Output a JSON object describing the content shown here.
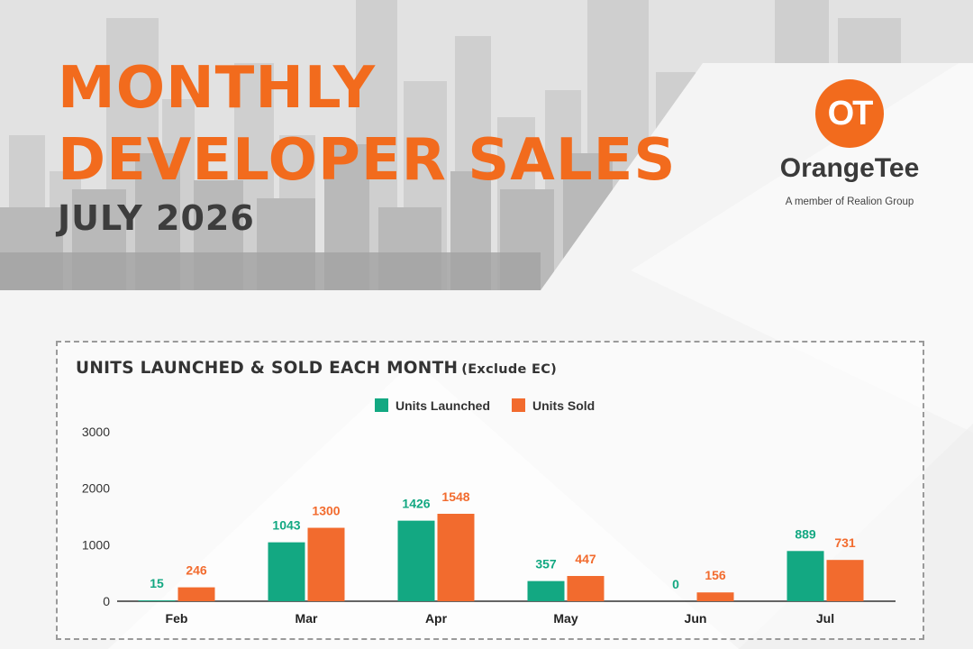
{
  "header": {
    "title_line1": "MONTHLY",
    "title_line2": "DEVELOPER SALES",
    "subtitle": "JULY 2026"
  },
  "logo": {
    "mark": "OT",
    "name": "OrangeTee",
    "tagline": "A member of Realion Group"
  },
  "colors": {
    "accent": "#f26b1d",
    "launched": "#13a882",
    "sold": "#f26b2e",
    "title_dark": "#3d3d3d"
  },
  "chart_data": {
    "type": "bar",
    "title": "UNITS LAUNCHED & SOLD EACH MONTH",
    "title_note": "(Exclude EC)",
    "categories": [
      "Feb",
      "Mar",
      "Apr",
      "May",
      "Jun",
      "Jul"
    ],
    "series": [
      {
        "name": "Units Launched",
        "values": [
          15,
          1043,
          1426,
          357,
          0,
          889
        ]
      },
      {
        "name": "Units Sold",
        "values": [
          246,
          1300,
          1548,
          447,
          156,
          731
        ]
      }
    ],
    "yticks": [
      0,
      1000,
      2000,
      3000
    ],
    "ylim": [
      0,
      3000
    ],
    "xlabel": "",
    "ylabel": "",
    "grid": false,
    "legend": "top-center",
    "data_labels": true
  }
}
